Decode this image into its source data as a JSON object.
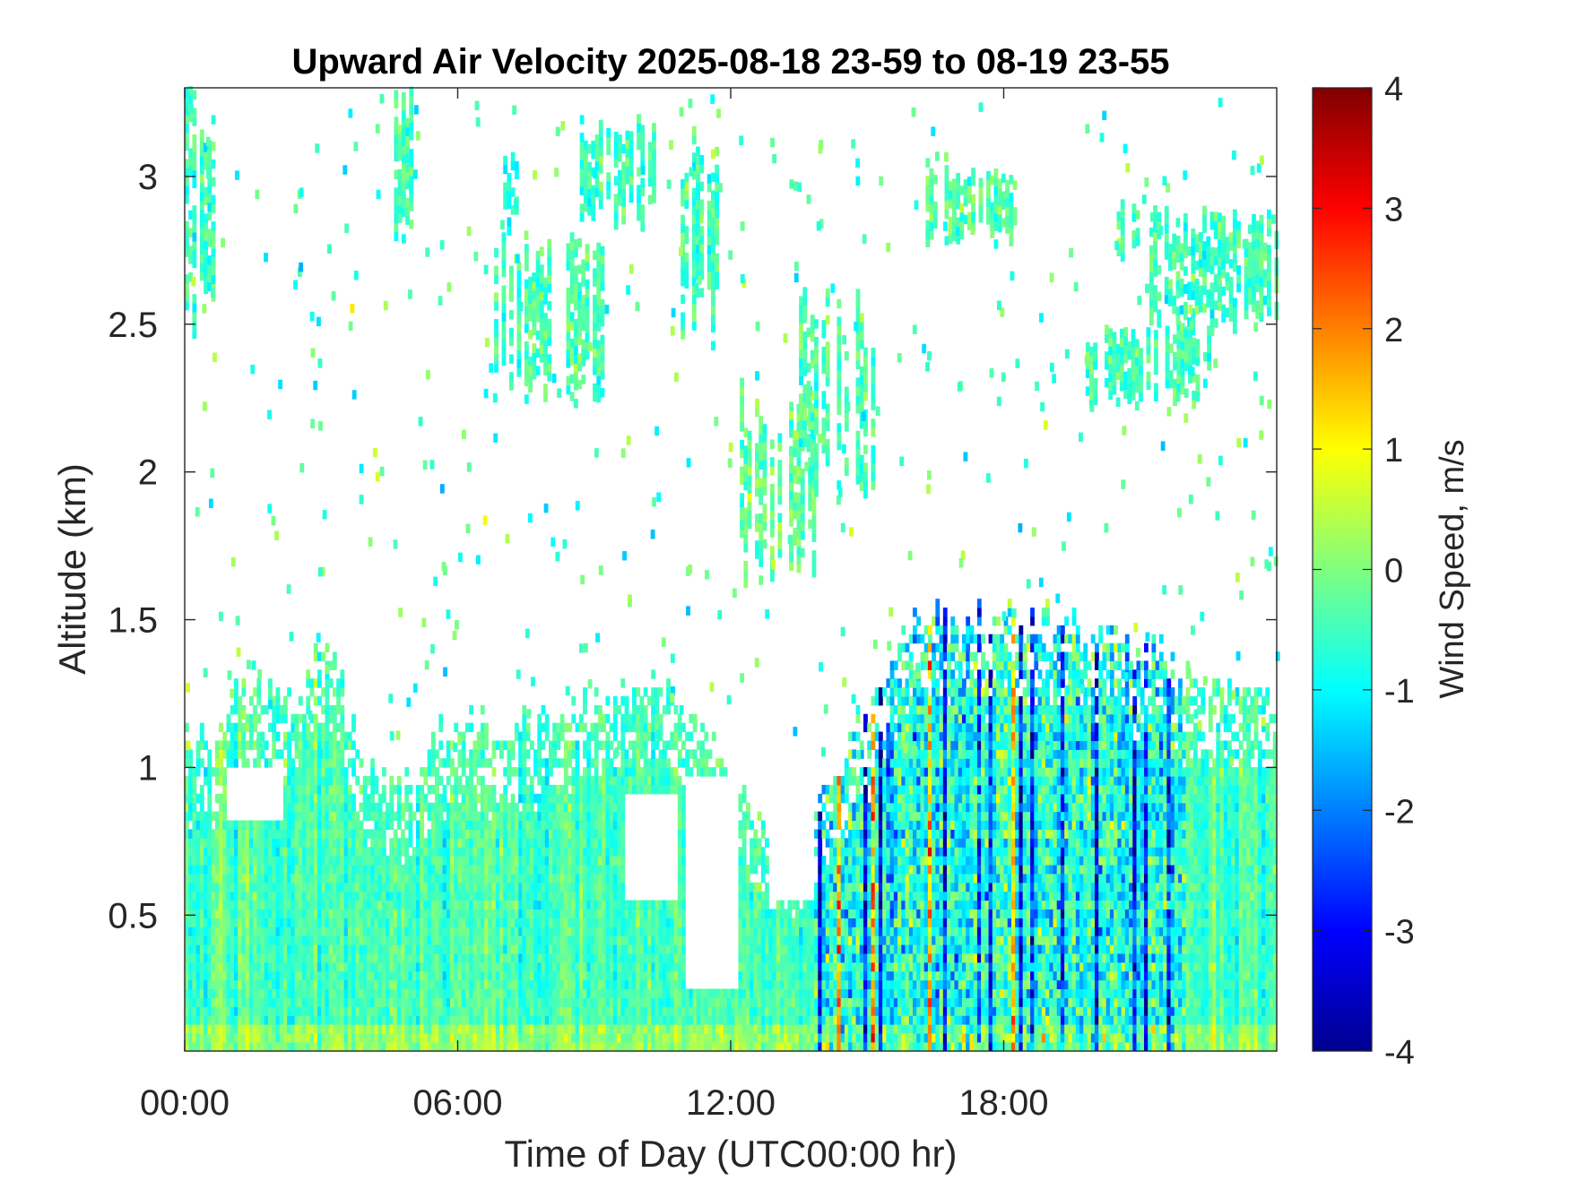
{
  "chart_data": {
    "type": "heatmap",
    "title": "Upward Air Velocity 2025-08-18 23-59 to 08-19 23-55",
    "xlabel": "Time of Day (UTC00:00 hr)",
    "ylabel": "Altitude (km)",
    "colorbar_label": "Wind Speed, m/s",
    "colormap": "jet",
    "x_unit": "hours",
    "xlim": [
      0,
      24
    ],
    "ylim": [
      0.04,
      3.3
    ],
    "clim": [
      -4,
      4
    ],
    "x_ticks": [
      {
        "value": 0,
        "label": "00:00"
      },
      {
        "value": 6,
        "label": "06:00"
      },
      {
        "value": 12,
        "label": "12:00"
      },
      {
        "value": 18,
        "label": "18:00"
      }
    ],
    "y_ticks": [
      {
        "value": 0.5,
        "label": "0.5"
      },
      {
        "value": 1,
        "label": "1"
      },
      {
        "value": 1.5,
        "label": "1.5"
      },
      {
        "value": 2,
        "label": "2"
      },
      {
        "value": 2.5,
        "label": "2.5"
      },
      {
        "value": 3,
        "label": "3"
      }
    ],
    "colorbar_ticks": [
      {
        "value": 4,
        "label": "4"
      },
      {
        "value": 3,
        "label": "3"
      },
      {
        "value": 2,
        "label": "2"
      },
      {
        "value": 1,
        "label": "1"
      },
      {
        "value": 0,
        "label": "0"
      },
      {
        "value": -1,
        "label": "-1"
      },
      {
        "value": -2,
        "label": "-2"
      },
      {
        "value": -3,
        "label": "-3"
      },
      {
        "value": -4,
        "label": "-4"
      }
    ],
    "grid": false,
    "coverage_top_km": [
      [
        0.0,
        1.1
      ],
      [
        0.5,
        1.05
      ],
      [
        1.0,
        1.2
      ],
      [
        1.5,
        1.3
      ],
      [
        2.0,
        1.25
      ],
      [
        2.5,
        1.2
      ],
      [
        3.0,
        1.45
      ],
      [
        3.5,
        1.2
      ],
      [
        4.0,
        0.95
      ],
      [
        4.5,
        1.0
      ],
      [
        5.0,
        0.95
      ],
      [
        5.5,
        1.05
      ],
      [
        6.0,
        1.15
      ],
      [
        7.0,
        1.1
      ],
      [
        8.0,
        1.15
      ],
      [
        9.0,
        1.2
      ],
      [
        10.0,
        1.25
      ],
      [
        11.0,
        1.2
      ],
      [
        11.5,
        1.1
      ],
      [
        12.0,
        0.95
      ],
      [
        12.5,
        0.85
      ],
      [
        13.0,
        0.7
      ],
      [
        13.5,
        0.75
      ],
      [
        14.0,
        0.9
      ],
      [
        14.5,
        1.1
      ],
      [
        15.0,
        1.2
      ],
      [
        15.5,
        1.35
      ],
      [
        16.0,
        1.45
      ],
      [
        17.0,
        1.5
      ],
      [
        18.0,
        1.5
      ],
      [
        19.0,
        1.5
      ],
      [
        20.0,
        1.45
      ],
      [
        21.0,
        1.35
      ],
      [
        22.0,
        1.3
      ],
      [
        23.0,
        1.25
      ],
      [
        24.0,
        1.2
      ]
    ],
    "gaps": [
      {
        "t0": 0.9,
        "t1": 2.1,
        "z0": 0.8,
        "z1": 1.0
      },
      {
        "t0": 9.6,
        "t1": 10.8,
        "z0": 0.55,
        "z1": 0.9
      },
      {
        "t0": 11.0,
        "t1": 12.1,
        "z0": 0.25,
        "z1": 0.95
      },
      {
        "t0": 12.8,
        "t1": 13.8,
        "z0": 0.55,
        "z1": 1.0
      }
    ],
    "patches": [
      {
        "t0": 0.0,
        "t1": 0.6,
        "z0": 2.45,
        "z1": 3.3,
        "mean": -0.5
      },
      {
        "t0": 4.6,
        "t1": 5.0,
        "z0": 2.7,
        "z1": 3.3,
        "mean": -0.4
      },
      {
        "t0": 6.8,
        "t1": 9.2,
        "z0": 2.2,
        "z1": 2.8,
        "mean": -0.4
      },
      {
        "t0": 8.6,
        "t1": 10.3,
        "z0": 2.8,
        "z1": 3.2,
        "mean": -0.5
      },
      {
        "t0": 7.0,
        "t1": 7.4,
        "z0": 2.8,
        "z1": 3.1,
        "mean": -0.6
      },
      {
        "t0": 10.9,
        "t1": 11.9,
        "z0": 2.4,
        "z1": 3.2,
        "mean": -0.5
      },
      {
        "t0": 12.2,
        "t1": 13.8,
        "z0": 1.6,
        "z1": 2.3,
        "mean": -0.2
      },
      {
        "t0": 13.5,
        "t1": 15.2,
        "z0": 1.9,
        "z1": 2.6,
        "mean": -0.4
      },
      {
        "t0": 16.2,
        "t1": 18.3,
        "z0": 2.75,
        "z1": 3.05,
        "mean": -0.3
      },
      {
        "t0": 19.8,
        "t1": 22.5,
        "z0": 2.2,
        "z1": 2.5,
        "mean": -0.4
      },
      {
        "t0": 20.4,
        "t1": 20.9,
        "z0": 2.7,
        "z1": 2.95,
        "mean": -0.3
      },
      {
        "t0": 21.2,
        "t1": 24.0,
        "z0": 2.45,
        "z1": 2.9,
        "mean": -0.5
      }
    ]
  }
}
